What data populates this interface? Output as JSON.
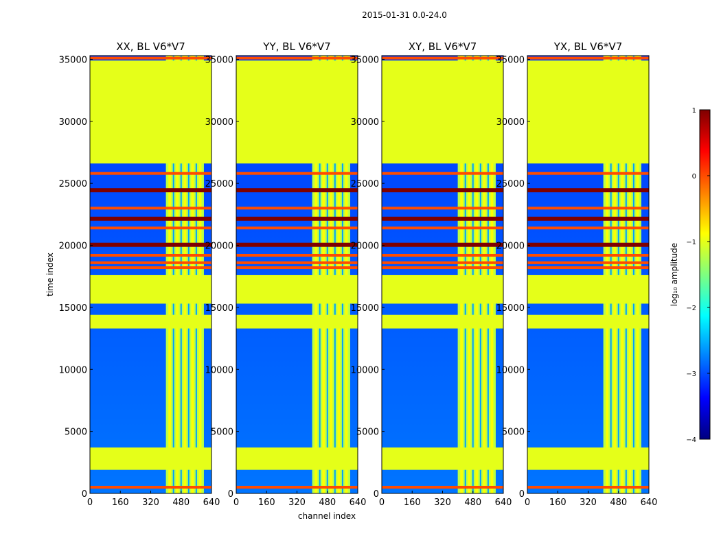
{
  "suptitle": "2015-01-31 0.0-24.0",
  "chart_data": {
    "type": "heatmap",
    "xlabel": "channel index",
    "ylabel": "time index",
    "xlim": [
      0,
      640
    ],
    "ylim": [
      0,
      35300
    ],
    "xticks": [
      "0",
      "160",
      "320",
      "480",
      "640"
    ],
    "yticks": [
      "0",
      "5000",
      "10000",
      "15000",
      "20000",
      "25000",
      "30000",
      "35000"
    ],
    "panels": [
      {
        "title": "XX, BL V6*V7"
      },
      {
        "title": "YY, BL V6*V7"
      },
      {
        "title": "XY, BL V6*V7"
      },
      {
        "title": "YX, BL V6*V7"
      }
    ],
    "colorbar": {
      "label": "log₁₀ amplitude",
      "range": [
        -4,
        1
      ],
      "ticks": [
        "1",
        "0",
        "−1",
        "−2",
        "−3",
        "−4"
      ],
      "colormap": [
        "#00007f",
        "#0000ff",
        "#007fff",
        "#00ffff",
        "#7fff7f",
        "#ffff00",
        "#ff7f00",
        "#ff0000",
        "#7f0000"
      ]
    },
    "flagged_value": -1,
    "flagged_time_ranges": [
      [
        1900,
        3700
      ],
      [
        13300,
        14400
      ],
      [
        15300,
        17600
      ],
      [
        26600,
        34900
      ]
    ],
    "bad_time_rows": [
      {
        "t": 500,
        "level": 0
      },
      {
        "t": 18200,
        "level": 0
      },
      {
        "t": 18600,
        "level": 0
      },
      {
        "t": 19200,
        "level": 0
      },
      {
        "t": 20100,
        "level": 1
      },
      {
        "t": 21400,
        "level": 0
      },
      {
        "t": 22200,
        "level": 1
      },
      {
        "t": 23000,
        "level": 0
      },
      {
        "t": 24500,
        "level": 1
      },
      {
        "t": 25800,
        "level": 0
      },
      {
        "t": 35100,
        "level": 0
      }
    ],
    "rfi_channel_range": [
      400,
      600
    ],
    "background_level": -3
  }
}
